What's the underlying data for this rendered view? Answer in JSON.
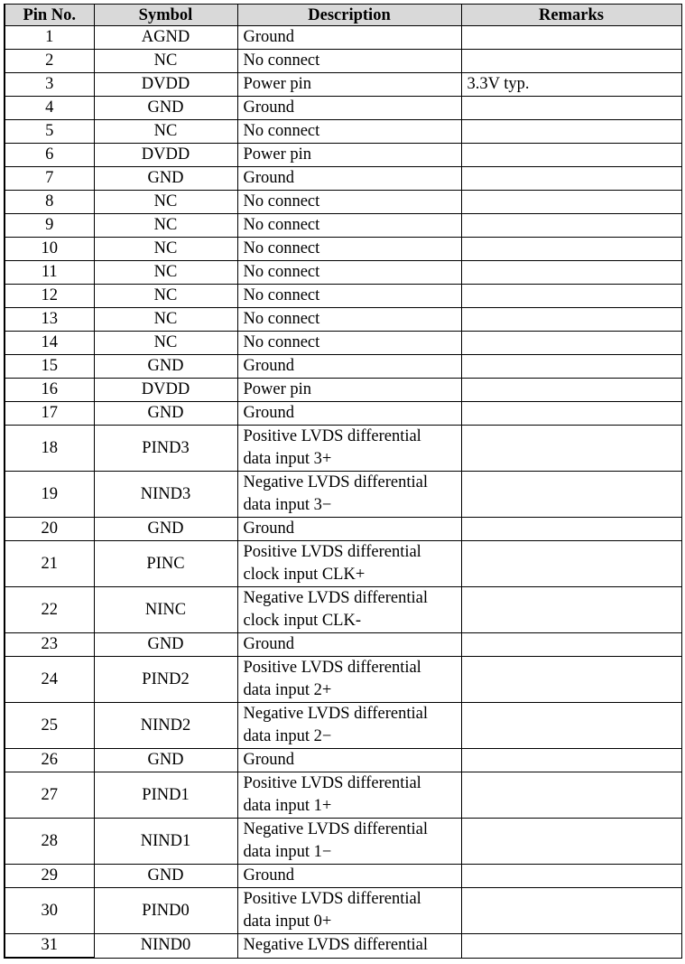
{
  "table": {
    "headers": [
      "Pin No.",
      "Symbol",
      "Description",
      "Remarks"
    ],
    "header_bg": "#d9d9d9",
    "rows": [
      {
        "pin": "1",
        "symbol": "AGND",
        "description": [
          "Ground"
        ],
        "remarks": ""
      },
      {
        "pin": "2",
        "symbol": "NC",
        "description": [
          "No connect"
        ],
        "remarks": ""
      },
      {
        "pin": "3",
        "symbol": "DVDD",
        "description": [
          "Power pin"
        ],
        "remarks": "3.3V typ."
      },
      {
        "pin": "4",
        "symbol": "GND",
        "description": [
          "Ground"
        ],
        "remarks": ""
      },
      {
        "pin": "5",
        "symbol": "NC",
        "description": [
          "No connect"
        ],
        "remarks": ""
      },
      {
        "pin": "6",
        "symbol": "DVDD",
        "description": [
          "Power pin"
        ],
        "remarks": ""
      },
      {
        "pin": "7",
        "symbol": "GND",
        "description": [
          "Ground"
        ],
        "remarks": ""
      },
      {
        "pin": "8",
        "symbol": "NC",
        "description": [
          "No connect"
        ],
        "remarks": ""
      },
      {
        "pin": "9",
        "symbol": "NC",
        "description": [
          "No connect"
        ],
        "remarks": ""
      },
      {
        "pin": "10",
        "symbol": "NC",
        "description": [
          "No connect"
        ],
        "remarks": ""
      },
      {
        "pin": "11",
        "symbol": "NC",
        "description": [
          "No connect"
        ],
        "remarks": ""
      },
      {
        "pin": "12",
        "symbol": "NC",
        "description": [
          "No connect"
        ],
        "remarks": ""
      },
      {
        "pin": "13",
        "symbol": "NC",
        "description": [
          "No connect"
        ],
        "remarks": ""
      },
      {
        "pin": "14",
        "symbol": "NC",
        "description": [
          "No connect"
        ],
        "remarks": ""
      },
      {
        "pin": "15",
        "symbol": "GND",
        "description": [
          "Ground"
        ],
        "remarks": ""
      },
      {
        "pin": "16",
        "symbol": "DVDD",
        "description": [
          "Power pin"
        ],
        "remarks": ""
      },
      {
        "pin": "17",
        "symbol": "GND",
        "description": [
          "Ground"
        ],
        "remarks": ""
      },
      {
        "pin": "18",
        "symbol": "PIND3",
        "description": [
          "Positive LVDS differential",
          "data input 3+"
        ],
        "remarks": ""
      },
      {
        "pin": "19",
        "symbol": "NIND3",
        "description": [
          "Negative LVDS differential",
          "data input 3−"
        ],
        "remarks": ""
      },
      {
        "pin": "20",
        "symbol": "GND",
        "description": [
          "Ground"
        ],
        "remarks": ""
      },
      {
        "pin": "21",
        "symbol": "PINC",
        "description": [
          "Positive LVDS differential",
          "clock input CLK+"
        ],
        "remarks": ""
      },
      {
        "pin": "22",
        "symbol": "NINC",
        "description": [
          "Negative LVDS differential",
          "clock input CLK-"
        ],
        "remarks": ""
      },
      {
        "pin": "23",
        "symbol": "GND",
        "description": [
          "Ground"
        ],
        "remarks": ""
      },
      {
        "pin": "24",
        "symbol": "PIND2",
        "description": [
          "Positive LVDS differential",
          "data input 2+"
        ],
        "remarks": ""
      },
      {
        "pin": "25",
        "symbol": "NIND2",
        "description": [
          "Negative LVDS differential",
          "data input 2−"
        ],
        "remarks": ""
      },
      {
        "pin": "26",
        "symbol": "GND",
        "description": [
          "Ground"
        ],
        "remarks": ""
      },
      {
        "pin": "27",
        "symbol": "PIND1",
        "description": [
          "Positive LVDS differential",
          "data input 1+"
        ],
        "remarks": ""
      },
      {
        "pin": "28",
        "symbol": "NIND1",
        "description": [
          "Negative LVDS differential",
          "data input 1−"
        ],
        "remarks": ""
      },
      {
        "pin": "29",
        "symbol": "GND",
        "description": [
          "Ground"
        ],
        "remarks": ""
      },
      {
        "pin": "30",
        "symbol": "PIND0",
        "description": [
          "Positive LVDS differential",
          "data input 0+"
        ],
        "remarks": ""
      },
      {
        "pin": "31",
        "symbol": "NIND0",
        "description": [
          "Negative LVDS differential"
        ],
        "remarks": ""
      }
    ]
  }
}
